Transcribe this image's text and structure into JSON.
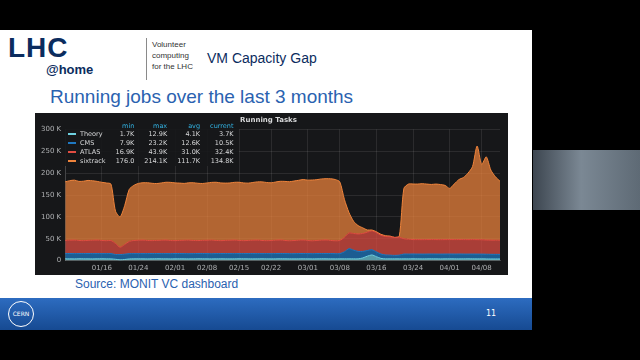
{
  "slide": {
    "logo": "LHC",
    "logo_sub": "@home",
    "tagline": [
      "Volunteer",
      "computing",
      "for the LHC"
    ],
    "header": "VM Capacity Gap",
    "heading": "Running jobs over the last 3 months",
    "source": "Source: MONIT VC dashboard",
    "footer_logo": "CERN",
    "page": "11"
  },
  "chart_data": {
    "type": "line",
    "title": "Running Tasks",
    "stacked": true,
    "grid": true,
    "legend": "top-left",
    "legend_columns": [
      "min",
      "max",
      "avg",
      "current"
    ],
    "categories": [
      null,
      null,
      null,
      null,
      null,
      null,
      null,
      null,
      "01/16",
      null,
      null,
      null,
      null,
      null,
      null,
      null,
      "01/24",
      null,
      null,
      null,
      null,
      null,
      null,
      null,
      "02/01",
      null,
      null,
      null,
      null,
      null,
      null,
      "02/08",
      null,
      null,
      null,
      null,
      null,
      null,
      "02/15",
      null,
      null,
      null,
      null,
      null,
      null,
      "02/22",
      null,
      null,
      null,
      null,
      null,
      null,
      null,
      "03/01",
      null,
      null,
      null,
      null,
      null,
      null,
      "03/08",
      null,
      null,
      null,
      null,
      null,
      null,
      null,
      "03/16",
      null,
      null,
      null,
      null,
      null,
      null,
      null,
      "03/24",
      null,
      null,
      null,
      null,
      null,
      null,
      null,
      "04/01",
      null,
      null,
      null,
      null,
      null,
      null,
      "04/08",
      null,
      null,
      null,
      null
    ],
    "ylim": [
      0,
      300000
    ],
    "yticks": [
      0,
      {
        "value": 50000,
        "label": "50 K"
      },
      {
        "value": 100000,
        "label": "100 K"
      },
      {
        "value": 150000,
        "label": "150 K"
      },
      {
        "value": 200000,
        "label": "200 K"
      },
      {
        "value": 250000,
        "label": "250 K"
      },
      {
        "value": 300000,
        "label": "300 K"
      }
    ],
    "series": [
      {
        "name": "Theory",
        "color": "#6ed0e0",
        "stats": [
          {
            "value": 1700,
            "label": "1.7K"
          },
          {
            "value": 12900,
            "label": "12.9K"
          },
          {
            "value": 4100,
            "label": "4.1K"
          },
          {
            "value": 3700,
            "label": "3.7K"
          }
        ],
        "values": [
          4100,
          4000,
          3900,
          4200,
          4100,
          4000,
          3900,
          4100,
          4200,
          4000,
          3900,
          3000,
          1700,
          2500,
          3800,
          4000,
          4100,
          4000,
          3900,
          4000,
          4200,
          4100,
          4000,
          3900,
          4000,
          4100,
          4000,
          3900,
          4000,
          4200,
          4100,
          4000,
          3900,
          4000,
          4100,
          4000,
          3900,
          4000,
          4200,
          4100,
          4000,
          3900,
          4000,
          4100,
          4000,
          3900,
          4000,
          4200,
          4100,
          4000,
          3900,
          4000,
          4100,
          4000,
          3900,
          4000,
          4200,
          4100,
          4000,
          3900,
          4000,
          4000,
          4000,
          4000,
          4000,
          6000,
          10000,
          12900,
          9000,
          5000,
          4000,
          4000,
          4000,
          4000,
          4000,
          4000,
          4100,
          4000,
          3900,
          4000,
          4100,
          4000,
          3900,
          4000,
          4100,
          4000,
          3900,
          4000,
          4100,
          4000,
          3900,
          4000,
          3800,
          3700,
          3700,
          3700
        ]
      },
      {
        "name": "CMS",
        "color": "#1f78c1",
        "stats": [
          {
            "value": 7900,
            "label": "7.9K"
          },
          {
            "value": 23200,
            "label": "23.2K"
          },
          {
            "value": 12600,
            "label": "12.6K"
          },
          {
            "value": 10500,
            "label": "10.5K"
          }
        ],
        "values": [
          12000,
          12200,
          12100,
          11900,
          12000,
          12300,
          12100,
          12000,
          11800,
          12000,
          12100,
          11000,
          12000,
          12200,
          12100,
          12000,
          11900,
          12000,
          12100,
          12200,
          12000,
          11900,
          12100,
          12000,
          12200,
          12100,
          12000,
          11900,
          12000,
          12100,
          12200,
          12000,
          11900,
          12100,
          12000,
          12200,
          12100,
          12000,
          11900,
          12000,
          12100,
          12200,
          12000,
          11900,
          12100,
          12000,
          12200,
          12100,
          12000,
          11900,
          12000,
          12100,
          12200,
          12000,
          11900,
          12100,
          12000,
          12200,
          12100,
          12000,
          12000,
          16000,
          23200,
          20000,
          17000,
          15000,
          13000,
          12000,
          11000,
          10000,
          9000,
          8500,
          7900,
          8500,
          11000,
          11000,
          11000,
          11000,
          11000,
          11000,
          11000,
          11000,
          11000,
          11000,
          11000,
          11000,
          11200,
          11000,
          10800,
          11000,
          11000,
          10900,
          10800,
          10700,
          10600,
          10500
        ]
      },
      {
        "name": "ATLAS",
        "color": "#e24d42",
        "stats": [
          {
            "value": 16900,
            "label": "16.9K"
          },
          {
            "value": 43900,
            "label": "43.9K"
          },
          {
            "value": 31000,
            "label": "31.0K"
          },
          {
            "value": 32400,
            "label": "32.4K"
          }
        ],
        "values": [
          30000,
          30500,
          31000,
          30000,
          29500,
          30000,
          30500,
          31000,
          30000,
          29500,
          30000,
          25000,
          16900,
          22000,
          28000,
          30000,
          30500,
          31000,
          30000,
          29500,
          30000,
          30500,
          31000,
          30000,
          29500,
          30000,
          30500,
          31000,
          30000,
          29500,
          30000,
          30500,
          31000,
          30000,
          29500,
          30000,
          30500,
          31000,
          30000,
          29500,
          30000,
          30500,
          31000,
          30000,
          29500,
          30000,
          30500,
          31000,
          30000,
          29500,
          30000,
          30500,
          31000,
          30000,
          29500,
          30000,
          30500,
          31000,
          30000,
          29500,
          30000,
          33000,
          36000,
          38000,
          40000,
          41000,
          42000,
          43000,
          43900,
          43000,
          42000,
          42000,
          41000,
          41000,
          35000,
          34000,
          33000,
          33000,
          33000,
          33000,
          33000,
          33000,
          33000,
          33000,
          33000,
          33000,
          33000,
          33000,
          33000,
          33000,
          33000,
          32800,
          32600,
          32500,
          32400,
          32400
        ]
      },
      {
        "name": "sixtrack",
        "color": "#ef843c",
        "stats": [
          {
            "value": 176,
            "label": "176.0"
          },
          {
            "value": 214100,
            "label": "214.1K"
          },
          {
            "value": 111700,
            "label": "111.7K"
          },
          {
            "value": 134800,
            "label": "134.8K"
          }
        ],
        "values": [
          134000,
          136000,
          137000,
          135000,
          136000,
          137000,
          136000,
          134000,
          133000,
          132000,
          129000,
          74000,
          69400,
          89000,
          119000,
          126000,
          130000,
          131000,
          132000,
          131000,
          130000,
          131000,
          132000,
          133000,
          132000,
          131000,
          130000,
          131000,
          132000,
          131000,
          130000,
          131000,
          132000,
          133000,
          132000,
          131000,
          131000,
          132000,
          133000,
          132000,
          131000,
          132000,
          133000,
          134000,
          133000,
          132000,
          133000,
          134000,
          135000,
          135000,
          136000,
          137000,
          138000,
          138000,
          139000,
          139000,
          140000,
          140000,
          141000,
          140000,
          134000,
          87000,
          46800,
          28000,
          19000,
          13000,
          5000,
          2100,
          2100,
          2000,
          2000,
          1500,
          176,
          2500,
          115000,
          126000,
          127000,
          127000,
          128000,
          127000,
          126000,
          127000,
          126000,
          124000,
          117000,
          127000,
          137000,
          142000,
          152000,
          167000,
          214100,
          172000,
          190000,
          160000,
          145000,
          134800
        ]
      }
    ]
  }
}
